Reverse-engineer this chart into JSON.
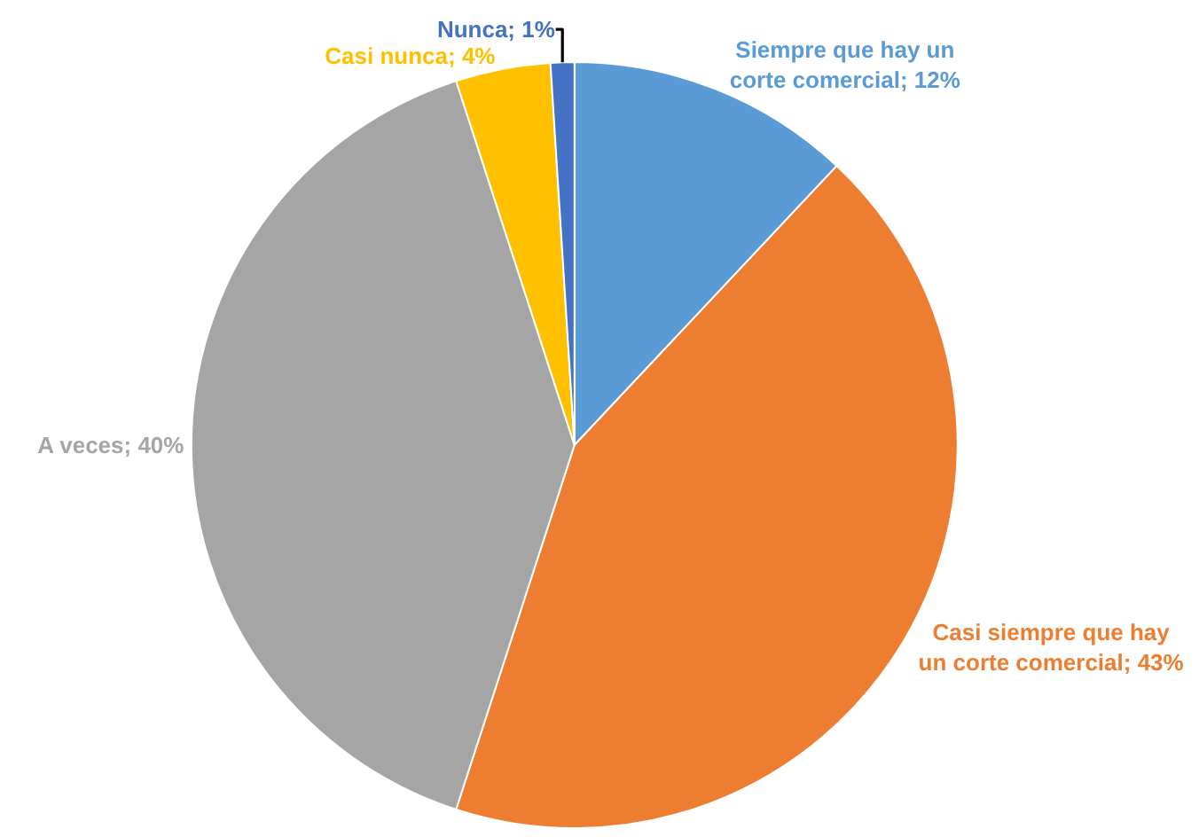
{
  "chart_data": {
    "type": "pie",
    "categories": [
      "Siempre que hay un corte comercial",
      "Casi siempre que hay un corte comercial",
      "A veces",
      "Casi nunca",
      "Nunca"
    ],
    "values": [
      12,
      43,
      40,
      4,
      1
    ],
    "value_labels": [
      "12%",
      "43%",
      "40%",
      "4%",
      "1%"
    ],
    "colors": [
      "#5b9bd5",
      "#ed7d31",
      "#a5a5a5",
      "#ffc000",
      "#4472c4"
    ],
    "legend": false
  }
}
